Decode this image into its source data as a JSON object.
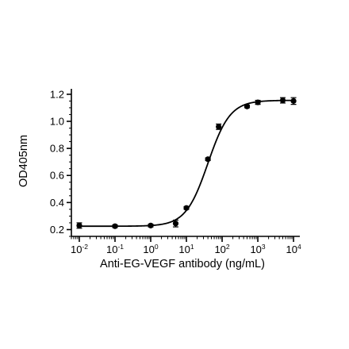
{
  "chart_data": {
    "type": "scatter",
    "title": "",
    "xlabel": "Anti-EG-VEGF antibody (ng/mL)",
    "ylabel": "OD405nm",
    "x_scale": "log10",
    "xlim": [
      0.006,
      15000
    ],
    "ylim": [
      0.15,
      1.24
    ],
    "x_ticks": [
      {
        "value": 0.01,
        "label": "10-2",
        "base": "10",
        "exp": "-2"
      },
      {
        "value": 0.1,
        "label": "10-1",
        "base": "10",
        "exp": "-1"
      },
      {
        "value": 1,
        "label": "100",
        "base": "10",
        "exp": "0"
      },
      {
        "value": 10,
        "label": "101",
        "base": "10",
        "exp": "1"
      },
      {
        "value": 100,
        "label": "102",
        "base": "10",
        "exp": "2"
      },
      {
        "value": 1000,
        "label": "103",
        "base": "10",
        "exp": "3"
      },
      {
        "value": 10000,
        "label": "104",
        "base": "10",
        "exp": "4"
      }
    ],
    "y_ticks": [
      {
        "value": 0.2,
        "label": "0.2"
      },
      {
        "value": 0.4,
        "label": "0.4"
      },
      {
        "value": 0.6,
        "label": "0.6"
      },
      {
        "value": 0.8,
        "label": "0.8"
      },
      {
        "value": 1.0,
        "label": "1.0"
      },
      {
        "value": 1.2,
        "label": "1.2"
      }
    ],
    "grid": false,
    "legend": "none",
    "series": [
      {
        "points": [
          {
            "x": 0.01,
            "y": 0.23,
            "err": 0.02
          },
          {
            "x": 0.1,
            "y": 0.225,
            "err": 0.01
          },
          {
            "x": 1,
            "y": 0.23,
            "err": 0.01
          },
          {
            "x": 5,
            "y": 0.245,
            "err": 0.025
          },
          {
            "x": 10,
            "y": 0.36,
            "err": 0.01
          },
          {
            "x": 40,
            "y": 0.72,
            "err": 0.01
          },
          {
            "x": 80,
            "y": 0.96,
            "err": 0.02
          },
          {
            "x": 500,
            "y": 1.11,
            "err": 0.01
          },
          {
            "x": 1000,
            "y": 1.14,
            "err": 0.015
          },
          {
            "x": 5000,
            "y": 1.155,
            "err": 0.02
          },
          {
            "x": 10000,
            "y": 1.15,
            "err": 0.025
          }
        ]
      }
    ],
    "fit_curve": {
      "model": "4PL",
      "bottom": 0.225,
      "top": 1.155,
      "ec50": 40,
      "hill": 1.4
    },
    "colors": {
      "marker": "#000000",
      "line": "#000000",
      "axis": "#000000"
    }
  }
}
